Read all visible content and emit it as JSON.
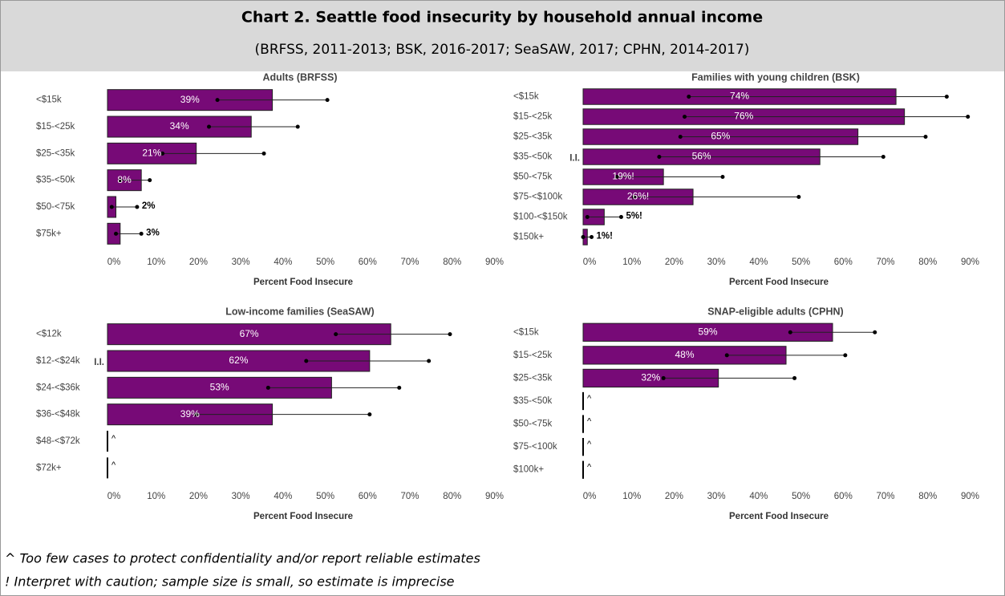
{
  "header": {
    "title": "Chart 2. Seattle food insecurity by household annual income",
    "subtitle": "(BRFSS, 2011-2013; BSK, 2016-2017; SeaSAW, 2017; CPHN, 2014-2017)"
  },
  "chart_data": [
    {
      "type": "bar",
      "title": "Adults (BRFSS)",
      "xlabel": "Percent Food Insecure",
      "color": "#770a77",
      "categories": [
        "<$15k",
        "$15-<25k",
        "$25-<35k",
        "$35-<50k",
        "$50-<75k",
        "$75k+"
      ],
      "values": [
        39,
        34,
        21,
        8,
        2,
        3
      ],
      "value_labels": [
        "39%",
        "34%",
        "21%",
        "8%",
        "2%",
        "3%"
      ],
      "ci_lower": [
        26,
        24,
        13,
        3,
        1,
        2
      ],
      "ci_upper": [
        52,
        45,
        37,
        10,
        7,
        8
      ],
      "xlim": [
        0,
        92
      ],
      "xticks": [
        {
          "value": 0,
          "label": "0%"
        },
        {
          "value": 10,
          "label": "10%"
        },
        {
          "value": 20,
          "label": "20%"
        },
        {
          "value": 30,
          "label": "30%"
        },
        {
          "value": 40,
          "label": "40%"
        },
        {
          "value": 50,
          "label": "50%"
        },
        {
          "value": 60,
          "label": "60%"
        },
        {
          "value": 70,
          "label": "70%"
        },
        {
          "value": 80,
          "label": "80%"
        },
        {
          "value": 90,
          "label": "90%"
        }
      ]
    },
    {
      "type": "bar",
      "title": "Families with young children (BSK)",
      "xlabel": "Percent Food Insecure",
      "color": "#770a77",
      "categories": [
        "<$15k",
        "$15-<25k",
        "$25-<35k",
        "$35-<50k",
        "$50-<75k",
        "$75-<$100k",
        "$100-<$150k",
        "$150k+"
      ],
      "values": [
        74,
        76,
        65,
        56,
        19,
        26,
        5,
        1
      ],
      "value_labels": [
        "74%",
        "76%",
        "65%",
        "56%",
        "19%!",
        "26%!",
        "5%!",
        "1%!"
      ],
      "ci_lower": [
        25,
        24,
        23,
        18,
        8,
        12,
        1,
        0
      ],
      "ci_upper": [
        86,
        91,
        81,
        71,
        33,
        51,
        9,
        2
      ],
      "markers": [
        null,
        null,
        null,
        "I.I.",
        null,
        null,
        null,
        null
      ],
      "xlim": [
        0,
        92
      ],
      "xticks": [
        {
          "value": 0,
          "label": "0%"
        },
        {
          "value": 10,
          "label": "10%"
        },
        {
          "value": 20,
          "label": "20%"
        },
        {
          "value": 30,
          "label": "30%"
        },
        {
          "value": 40,
          "label": "40%"
        },
        {
          "value": 50,
          "label": "50%"
        },
        {
          "value": 60,
          "label": "60%"
        },
        {
          "value": 70,
          "label": "70%"
        },
        {
          "value": 80,
          "label": "80%"
        },
        {
          "value": 90,
          "label": "90%"
        }
      ]
    },
    {
      "type": "bar",
      "title": "Low-income families (SeaSAW)",
      "xlabel": "Percent Food Insecure",
      "color": "#770a77",
      "categories": [
        "<$12k",
        "$12-<$24k",
        "$24-<$36k",
        "$36-<$48k",
        "$48-<$72k",
        "$72k+"
      ],
      "values": [
        67,
        62,
        53,
        39,
        null,
        null
      ],
      "value_labels": [
        "67%",
        "62%",
        "53%",
        "39%",
        "^",
        "^"
      ],
      "ci_lower": [
        54,
        47,
        38,
        21,
        null,
        null
      ],
      "ci_upper": [
        81,
        76,
        69,
        62,
        null,
        null
      ],
      "markers": [
        null,
        "I.I.",
        null,
        null,
        null,
        null
      ],
      "xlim": [
        0,
        92
      ],
      "xticks": [
        {
          "value": 0,
          "label": "0%"
        },
        {
          "value": 10,
          "label": "10%"
        },
        {
          "value": 20,
          "label": "20%"
        },
        {
          "value": 30,
          "label": "30%"
        },
        {
          "value": 40,
          "label": "40%"
        },
        {
          "value": 50,
          "label": "50%"
        },
        {
          "value": 60,
          "label": "60%"
        },
        {
          "value": 70,
          "label": "70%"
        },
        {
          "value": 80,
          "label": "80%"
        },
        {
          "value": 90,
          "label": "90%"
        }
      ]
    },
    {
      "type": "bar",
      "title": "SNAP-eligible adults (CPHN)",
      "xlabel": "Percent Food Insecure",
      "color": "#770a77",
      "categories": [
        "<$15k",
        "$15-<25k",
        "$25-<35k",
        "$35-<50k",
        "$50-<75k",
        "$75-<100k",
        "$100k+"
      ],
      "values": [
        59,
        48,
        32,
        null,
        null,
        null,
        null
      ],
      "value_labels": [
        "59%",
        "48%",
        "32%",
        "^",
        "^",
        "^",
        "^"
      ],
      "ci_lower": [
        49,
        34,
        19,
        null,
        null,
        null,
        null
      ],
      "ci_upper": [
        69,
        62,
        50,
        null,
        null,
        null,
        null
      ],
      "xlim": [
        0,
        92
      ],
      "xticks": [
        {
          "value": 0,
          "label": "0%"
        },
        {
          "value": 10,
          "label": "10%"
        },
        {
          "value": 20,
          "label": "20%"
        },
        {
          "value": 30,
          "label": "30%"
        },
        {
          "value": 40,
          "label": "40%"
        },
        {
          "value": 50,
          "label": "50%"
        },
        {
          "value": 60,
          "label": "60%"
        },
        {
          "value": 70,
          "label": "70%"
        },
        {
          "value": 80,
          "label": "80%"
        },
        {
          "value": 90,
          "label": "90%"
        }
      ]
    }
  ],
  "footnotes": [
    "^ Too few cases to protect confidentiality and/or report reliable estimates",
    "! Interpret with caution; sample size is small, so estimate is imprecise"
  ]
}
